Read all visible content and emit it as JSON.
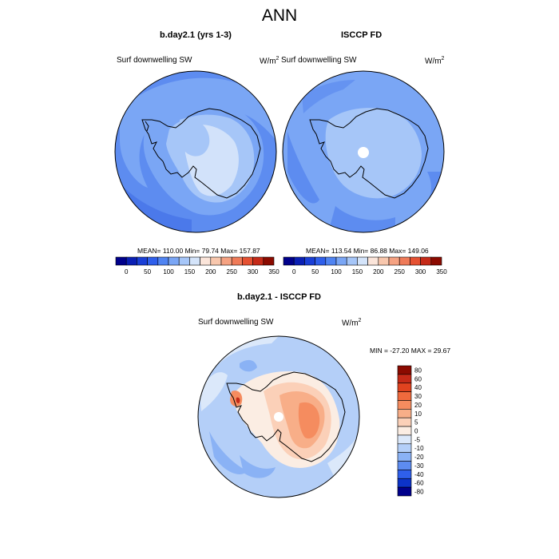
{
  "title": "ANN",
  "panels": [
    {
      "title": "b.day2.1 (yrs 1-3)",
      "variable": "Surf downwelling SW",
      "units": "W/m",
      "units_sup": "2",
      "stats": "MEAN= 110.00  Min=  79.74  Max= 157.87"
    },
    {
      "title": "ISCCP FD",
      "variable": "Surf downwelling SW",
      "units": "W/m",
      "units_sup": "2",
      "stats": "MEAN= 113.54  Min=  86.88  Max= 149.06"
    },
    {
      "title": "b.day2.1 - ISCCP FD",
      "variable": "Surf downwelling SW",
      "units": "W/m",
      "units_sup": "2",
      "stats": "MIN = -27.20 MAX =  29.67"
    }
  ],
  "colorbar_abs": {
    "labels": [
      "0",
      "50",
      "100",
      "150",
      "200",
      "250",
      "300",
      "350"
    ],
    "colors": [
      "#00008B",
      "#0A1FB4",
      "#1A3FD6",
      "#2F5FEB",
      "#5084F2",
      "#7AA6F5",
      "#A6C6F8",
      "#D4E4FA",
      "#FBE5DA",
      "#F8C7AD",
      "#F5A282",
      "#EF7B59",
      "#E55132",
      "#C52A18",
      "#8B0A00"
    ]
  },
  "colorbar_diff": {
    "labels": [
      "80",
      "60",
      "40",
      "30",
      "20",
      "10",
      "5",
      "0",
      "-5",
      "-10",
      "-20",
      "-30",
      "-40",
      "-60",
      "-80"
    ],
    "colors": [
      "#8B0A00",
      "#C52A18",
      "#E0431F",
      "#EF6A3D",
      "#F58C5F",
      "#F8AE88",
      "#FBD0B8",
      "#FBEDE3",
      "#DBE8FA",
      "#B4CFF8",
      "#8AB2F5",
      "#5D8CF0",
      "#2F5FEB",
      "#0C33C8",
      "#00008B"
    ]
  }
}
